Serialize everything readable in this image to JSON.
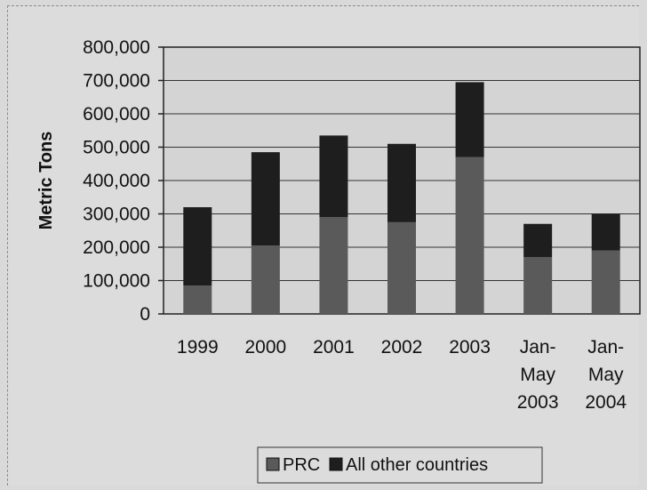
{
  "chart_data": {
    "type": "bar",
    "stacked": true,
    "title": "",
    "xlabel": "",
    "ylabel": "Metric Tons",
    "ylim": [
      0,
      800000
    ],
    "yticks": [
      "0",
      "100,000",
      "200,000",
      "300,000",
      "400,000",
      "500,000",
      "600,000",
      "700,000",
      "800,000"
    ],
    "categories": [
      [
        "1999"
      ],
      [
        "2000"
      ],
      [
        "2001"
      ],
      [
        "2002"
      ],
      [
        "2003"
      ],
      [
        "Jan-",
        "May",
        "2003"
      ],
      [
        "Jan-",
        "May",
        "2004"
      ]
    ],
    "series": [
      {
        "name": "PRC",
        "color": "#5a5a5a",
        "values": [
          85000,
          205000,
          290000,
          275000,
          470000,
          170000,
          190000
        ]
      },
      {
        "name": "All other countries",
        "color": "#1e1e1e",
        "values": [
          235000,
          280000,
          245000,
          235000,
          225000,
          100000,
          110000
        ]
      }
    ],
    "grid": true,
    "legend_position": "bottom"
  }
}
